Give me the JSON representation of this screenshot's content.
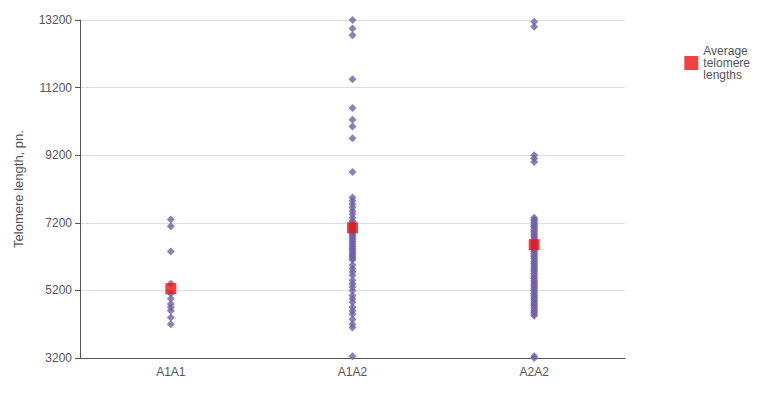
{
  "chart_data": {
    "type": "scatter",
    "categories": [
      "A1A1",
      "A1A2",
      "A2A2"
    ],
    "ylabel": "Telomere length, pn.",
    "ylim": [
      3200,
      13200
    ],
    "yticks": [
      3200,
      5200,
      7200,
      9200,
      11200,
      13200
    ],
    "grid": true,
    "legend": "right",
    "series": [
      {
        "color": "#7060a8",
        "marker": "diamond",
        "values": [
          [
            7300,
            7100,
            6350,
            5400,
            5100,
            4950,
            4800,
            4700,
            4600,
            4400,
            4200
          ],
          [
            13200,
            12950,
            12750,
            11450,
            10600,
            10250,
            10050,
            9700,
            8700,
            7950,
            7850,
            7750,
            7650,
            7550,
            7450,
            7350,
            7250,
            7200,
            7150,
            7100,
            7050,
            7000,
            6950,
            6900,
            6850,
            6800,
            6750,
            6700,
            6650,
            6600,
            6550,
            6500,
            6450,
            6400,
            6350,
            6300,
            6250,
            6200,
            6150,
            6100,
            5950,
            5850,
            5750,
            5650,
            5500,
            5400,
            5300,
            5200,
            5050,
            4950,
            4850,
            4700,
            4600,
            4500,
            4350,
            4200,
            4100,
            3250
          ],
          [
            13150,
            13000,
            9200,
            9100,
            9000,
            7350,
            7300,
            7250,
            7200,
            7150,
            7100,
            7050,
            7000,
            6950,
            6900,
            6850,
            6800,
            6750,
            6700,
            6650,
            6600,
            6550,
            6500,
            6450,
            6400,
            6350,
            6300,
            6250,
            6200,
            6150,
            6100,
            6050,
            6000,
            5950,
            5900,
            5850,
            5800,
            5750,
            5700,
            5650,
            5600,
            5550,
            5500,
            5450,
            5400,
            5350,
            5300,
            5250,
            5200,
            5150,
            5100,
            5050,
            5000,
            4950,
            4900,
            4850,
            4800,
            4750,
            4700,
            4650,
            4600,
            4550,
            4500,
            4450,
            3250,
            3200
          ]
        ]
      },
      {
        "name": "Average\ntelomere\nlengths",
        "color": "#ee1111",
        "marker": "square",
        "values": [
          5250,
          7050,
          6550
        ]
      }
    ]
  }
}
